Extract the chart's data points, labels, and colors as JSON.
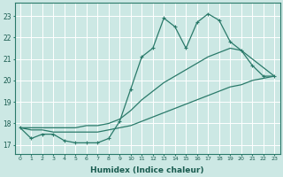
{
  "xlabel": "Humidex (Indice chaleur)",
  "bg_color": "#cce8e4",
  "grid_color": "#ffffff",
  "line_color": "#2a7a6a",
  "x_ticks": [
    0,
    1,
    2,
    3,
    4,
    5,
    6,
    7,
    8,
    9,
    10,
    11,
    12,
    13,
    14,
    15,
    16,
    17,
    18,
    19,
    20,
    21,
    22,
    23
  ],
  "y_ticks": [
    17,
    18,
    19,
    20,
    21,
    22,
    23
  ],
  "ylim": [
    16.6,
    23.6
  ],
  "xlim": [
    -0.5,
    23.5
  ],
  "line1_x": [
    0,
    1,
    2,
    3,
    4,
    5,
    6,
    7,
    8,
    9,
    10,
    11,
    12,
    13,
    14,
    15,
    16,
    17,
    18,
    19,
    20,
    21,
    22,
    23
  ],
  "line1_y": [
    17.8,
    17.3,
    17.5,
    17.5,
    17.2,
    17.1,
    17.1,
    17.1,
    17.3,
    18.1,
    19.6,
    21.1,
    21.5,
    22.9,
    22.5,
    21.5,
    22.7,
    23.1,
    22.8,
    21.8,
    21.4,
    20.7,
    20.2,
    20.2
  ],
  "line2_x": [
    0,
    1,
    2,
    3,
    4,
    5,
    6,
    7,
    8,
    9,
    10,
    11,
    12,
    13,
    14,
    15,
    16,
    17,
    18,
    19,
    20,
    21,
    22,
    23
  ],
  "line2_y": [
    17.8,
    17.7,
    17.7,
    17.6,
    17.6,
    17.6,
    17.6,
    17.6,
    17.7,
    17.8,
    17.9,
    18.1,
    18.3,
    18.5,
    18.7,
    18.9,
    19.1,
    19.3,
    19.5,
    19.7,
    19.8,
    20.0,
    20.1,
    20.2
  ],
  "line3_x": [
    0,
    1,
    2,
    3,
    4,
    5,
    6,
    7,
    8,
    9,
    10,
    11,
    12,
    13,
    14,
    15,
    16,
    17,
    18,
    19,
    20,
    21,
    22,
    23
  ],
  "line3_y": [
    17.8,
    17.8,
    17.8,
    17.8,
    17.8,
    17.8,
    17.9,
    17.9,
    18.0,
    18.2,
    18.6,
    19.1,
    19.5,
    19.9,
    20.2,
    20.5,
    20.8,
    21.1,
    21.3,
    21.5,
    21.4,
    21.0,
    20.6,
    20.2
  ]
}
